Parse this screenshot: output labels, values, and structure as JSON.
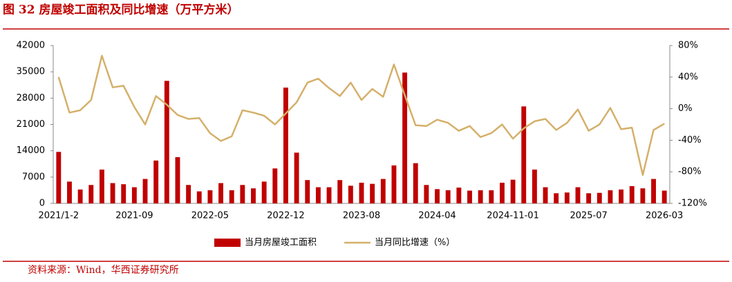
{
  "chart_data": {
    "type": "bar-line",
    "title": "图 32 房屋竣工面积及同比增速（万平方米）",
    "source": "资料来源：Wind，华西证券研究所",
    "categories": [
      "2021/1-2",
      null,
      null,
      null,
      null,
      null,
      null,
      "2021-09",
      null,
      null,
      null,
      null,
      null,
      null,
      "2022-05",
      null,
      null,
      null,
      null,
      null,
      null,
      "2022-12",
      null,
      null,
      null,
      null,
      null,
      null,
      "2023-08",
      null,
      null,
      null,
      null,
      null,
      null,
      "2024-04",
      null,
      null,
      null,
      null,
      null,
      null,
      "2024-11-01",
      null,
      null,
      null,
      null,
      null,
      null,
      "2025-07",
      null,
      null,
      null,
      null,
      null,
      null,
      "2026-03"
    ],
    "series": [
      {
        "name": "当月房屋竣工面积",
        "color": "#c00000",
        "type": "bar",
        "values": [
          13700,
          5800,
          3700,
          4900,
          9000,
          5400,
          5100,
          4300,
          6500,
          11400,
          32600,
          12300,
          4900,
          3200,
          3500,
          5400,
          3500,
          4900,
          4000,
          5800,
          9300,
          30800,
          13500,
          6200,
          4300,
          4300,
          6200,
          4700,
          5500,
          5200,
          6500,
          10100,
          34800,
          10700,
          4900,
          3800,
          3500,
          4200,
          3400,
          3500,
          3500,
          5500,
          6300,
          25800,
          9000,
          4300,
          2700,
          2900,
          4300,
          2700,
          2800,
          3500,
          3700,
          4600,
          4000,
          6500,
          3400
        ]
      },
      {
        "name": "当月同比增速（%）",
        "color": "#d4b06a",
        "type": "line",
        "axis": "y2",
        "values": [
          40,
          -5,
          -2,
          11,
          67,
          27,
          29,
          2,
          -20,
          16,
          5,
          -8,
          -13,
          -12,
          -31,
          -41,
          -35,
          -2,
          -5,
          -9,
          -20,
          -6,
          8,
          33,
          38,
          26,
          16,
          33,
          11,
          25,
          15,
          56,
          17,
          -21,
          -22,
          -14,
          -18,
          -28,
          -22,
          -36,
          -31,
          -20,
          -38,
          -25,
          -16,
          -13,
          -27,
          -18,
          -1,
          -28,
          -20,
          1,
          -26,
          -24,
          -84,
          -27,
          -19
        ]
      }
    ],
    "ylim": [
      0,
      42000
    ],
    "yticks": [
      0,
      7000,
      14000,
      21000,
      28000,
      35000,
      42000
    ],
    "y2lim": [
      -120,
      80
    ],
    "y2ticks": [
      {
        "value": -120,
        "label": "-120%"
      },
      {
        "value": -80,
        "label": "-80%"
      },
      {
        "value": -40,
        "label": "-40%"
      },
      {
        "value": 0,
        "label": "0%"
      },
      {
        "value": 40,
        "label": "40%"
      },
      {
        "value": 80,
        "label": "80%"
      }
    ],
    "grid": false,
    "legend": "bottom"
  }
}
